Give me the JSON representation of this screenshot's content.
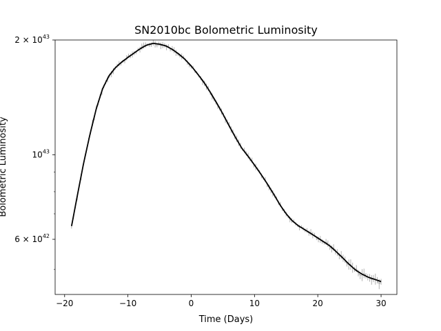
{
  "chart_data": {
    "type": "line",
    "title": "SN2010bc Bolometric Luminosity",
    "xlabel": "Time (Days)",
    "ylabel": "Bolometric Luminosity",
    "xlim": [
      -21.5,
      32.5
    ],
    "ylim": [
      4.3e+42,
      2e+43
    ],
    "yscale": "log",
    "grid": false,
    "x_ticks": [
      {
        "value": -20,
        "label": "−20"
      },
      {
        "value": -10,
        "label": "−10"
      },
      {
        "value": 0,
        "label": "0"
      },
      {
        "value": 10,
        "label": "10"
      },
      {
        "value": 20,
        "label": "20"
      },
      {
        "value": 30,
        "label": "30"
      }
    ],
    "y_ticks": [
      {
        "value": 6e+42,
        "base": "6 × 10",
        "exp": "42"
      },
      {
        "value": 1e+43,
        "base": "10",
        "exp": "43"
      },
      {
        "value": 2e+43,
        "base": "2 × 10",
        "exp": "43"
      }
    ],
    "y_minor_ticks": [
      5e+42,
      7e+42,
      8e+42,
      9e+42
    ],
    "series": [
      {
        "style": "model-line",
        "color": "#000000",
        "x": [
          -18.9,
          -18.0,
          -17.0,
          -16.0,
          -15.0,
          -14.0,
          -13.0,
          -12.0,
          -11.0,
          -10.0,
          -9.0,
          -8.0,
          -7.0,
          -6.0,
          -5.0,
          -4.0,
          -3.0,
          -2.0,
          -1.0,
          0.0,
          1.0,
          2.0,
          3.0,
          4.0,
          5.0,
          6.0,
          7.0,
          8.0,
          9.0,
          10.0,
          11.0,
          12.0,
          13.0,
          14.0,
          15.0,
          16.0,
          17.0,
          18.0,
          19.0,
          20.0,
          21.0,
          22.0,
          23.0,
          24.0,
          25.0,
          26.0,
          27.0,
          28.0,
          29.0,
          30.0
        ],
        "y": [
          6.5e+42,
          7.8e+42,
          9.5e+42,
          1.13e+43,
          1.32e+43,
          1.49e+43,
          1.61e+43,
          1.69e+43,
          1.75e+43,
          1.8e+43,
          1.85e+43,
          1.9e+43,
          1.94e+43,
          1.96e+43,
          1.95e+43,
          1.93e+43,
          1.89e+43,
          1.84e+43,
          1.78e+43,
          1.71e+43,
          1.63e+43,
          1.55e+43,
          1.46e+43,
          1.37e+43,
          1.28e+43,
          1.19e+43,
          1.11e+43,
          1.04e+43,
          9.9e+42,
          9.4e+42,
          8.9e+42,
          8.4e+42,
          7.9e+42,
          7.4e+42,
          7e+42,
          6.7e+42,
          6.5e+42,
          6.35e+42,
          6.2e+42,
          6.05e+42,
          5.9e+42,
          5.75e+42,
          5.55e+42,
          5.35e+42,
          5.15e+42,
          4.98e+42,
          4.86e+42,
          4.77e+42,
          4.71e+42,
          4.65e+42
        ]
      },
      {
        "style": "noisy-data",
        "color": "#b0b0b0",
        "x_start": -18.9,
        "x_end": 30.0,
        "x_step": 0.3
      }
    ]
  }
}
